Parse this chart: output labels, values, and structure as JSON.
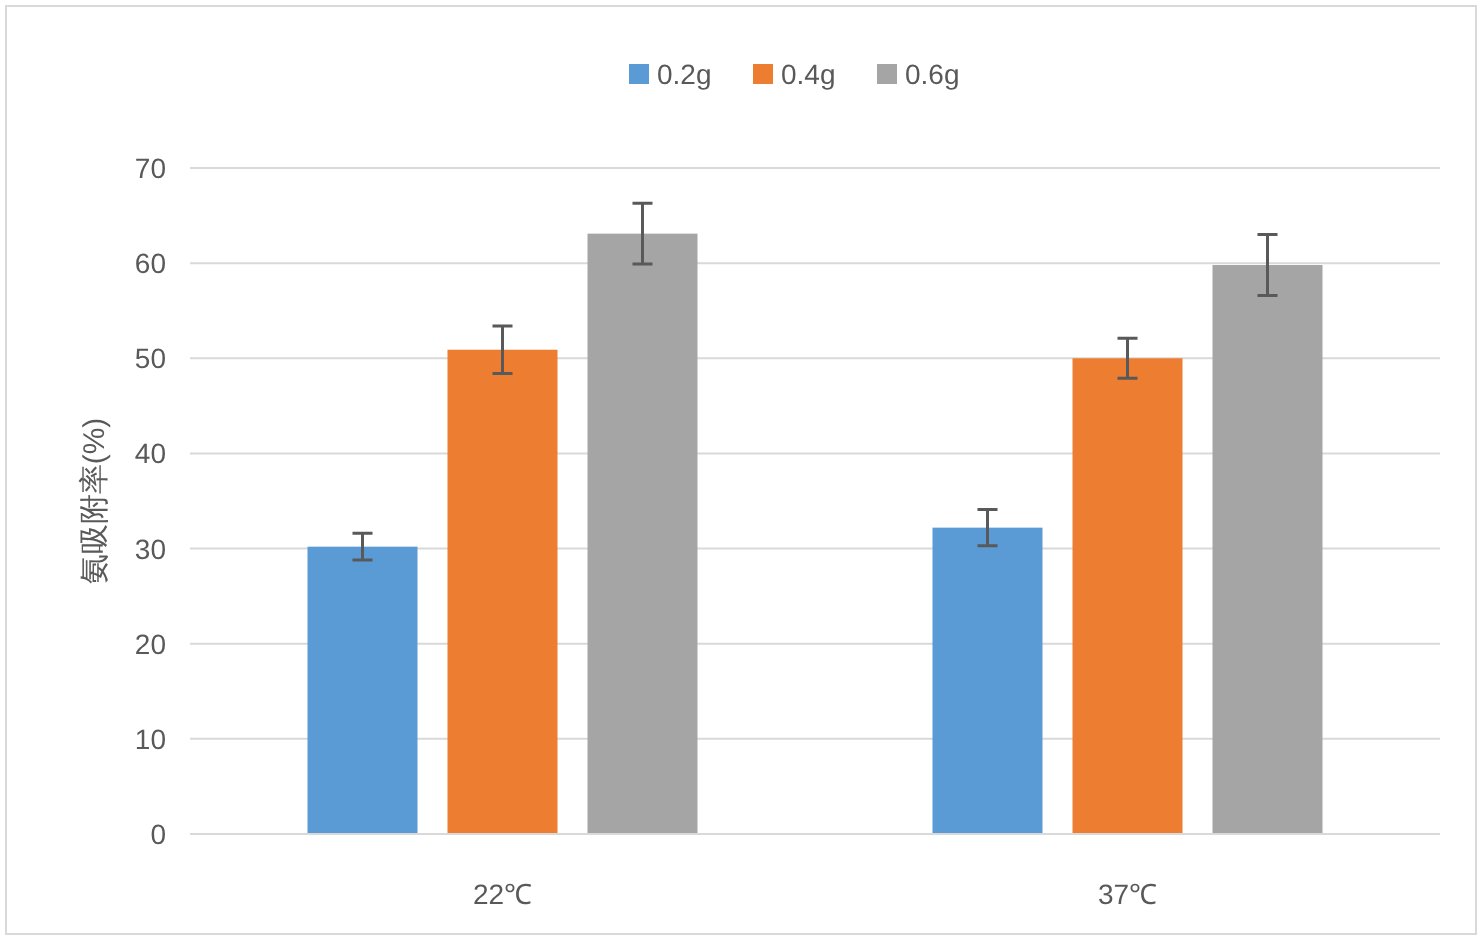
{
  "chart_data": {
    "type": "bar",
    "ylabel": "氨吸附率(%)",
    "categories": [
      "22℃",
      "37℃"
    ],
    "series": [
      {
        "name": "0.2g",
        "color": "#5b9bd5",
        "values": [
          30.2,
          32.2
        ],
        "errors": [
          1.4,
          1.9
        ]
      },
      {
        "name": "0.4g",
        "color": "#ed7d31",
        "values": [
          50.9,
          50.0
        ],
        "errors": [
          2.5,
          2.1
        ]
      },
      {
        "name": "0.6g",
        "color": "#a5a5a5",
        "values": [
          63.1,
          59.8
        ],
        "errors": [
          3.2,
          3.2
        ]
      }
    ],
    "ylim": [
      0,
      70
    ],
    "yticks": [
      0,
      10,
      20,
      30,
      40,
      50,
      60,
      70
    ],
    "grid": "y",
    "legend": "top"
  }
}
